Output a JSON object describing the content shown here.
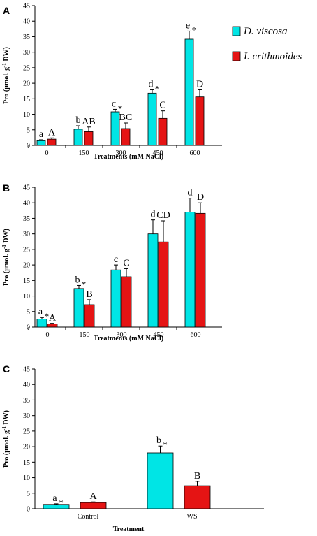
{
  "colors": {
    "series1": "#00e5e5",
    "series2": "#e51414",
    "stroke": "#000000"
  },
  "legend": [
    {
      "label": "D. viscosa",
      "color": "#00e5e5"
    },
    {
      "label": "I. crithmoides",
      "color": "#e51414"
    }
  ],
  "chart_data": [
    {
      "panel": "A",
      "type": "bar",
      "xlabel": "Treatments  (mM  NaCl)",
      "ylabel_parts": [
        "Pro (μmol. g",
        "-1",
        " DW)"
      ],
      "ylim": [
        0,
        45
      ],
      "yticks": [
        0,
        5,
        10,
        15,
        20,
        25,
        30,
        35,
        40,
        45
      ],
      "categories": [
        "0",
        "150",
        "300",
        "450",
        "600"
      ],
      "legend_position": "top-right",
      "series": [
        {
          "values": [
            1.5,
            5.2,
            10.8,
            16.8,
            34.2
          ],
          "errors": [
            0.3,
            1.1,
            0.8,
            1.1,
            2.6
          ],
          "letters": [
            "a",
            "b",
            "c",
            "d",
            "e"
          ],
          "stars": [
            false,
            false,
            true,
            true,
            true
          ]
        },
        {
          "values": [
            2.0,
            4.4,
            5.4,
            8.7,
            15.6
          ],
          "errors": [
            0.4,
            1.5,
            1.8,
            2.4,
            2.3
          ],
          "letters": [
            "A",
            "AB",
            "BC",
            "C",
            "D"
          ],
          "stars": [
            false,
            false,
            false,
            false,
            false
          ]
        }
      ]
    },
    {
      "panel": "B",
      "type": "bar",
      "xlabel": "Treatments  (mM  NaCl)",
      "ylabel_parts": [
        "Pro (μmol. g",
        "-1",
        " DW)"
      ],
      "ylim": [
        0,
        45
      ],
      "yticks": [
        0,
        5,
        10,
        15,
        20,
        25,
        30,
        35,
        40,
        45
      ],
      "categories": [
        "0",
        "150",
        "300",
        "450",
        "600"
      ],
      "series": [
        {
          "values": [
            2.6,
            12.4,
            18.4,
            30.0,
            37.0
          ],
          "errors": [
            0.5,
            1.0,
            1.6,
            4.5,
            4.5
          ],
          "letters": [
            "a",
            "b",
            "c",
            "d",
            "d"
          ],
          "stars": [
            true,
            true,
            false,
            false,
            false
          ]
        },
        {
          "values": [
            1.0,
            7.2,
            16.2,
            27.4,
            36.6
          ],
          "errors": [
            0.2,
            1.6,
            2.6,
            6.8,
            3.4
          ],
          "letters": [
            "A",
            "B",
            "C",
            "CD",
            "D"
          ],
          "stars": [
            false,
            false,
            false,
            false,
            false
          ]
        }
      ]
    },
    {
      "panel": "C",
      "type": "bar",
      "xlabel": "Treatment",
      "ylabel_parts": [
        "Pro (μmol. g",
        "-1",
        " DW)"
      ],
      "ylim": [
        0,
        45
      ],
      "yticks": [
        0,
        5,
        10,
        15,
        20,
        25,
        30,
        35,
        40,
        45
      ],
      "categories": [
        "Control",
        "WS"
      ],
      "series": [
        {
          "values": [
            1.4,
            18.0
          ],
          "errors": [
            0.2,
            2.2
          ],
          "letters": [
            "a",
            "b"
          ],
          "stars": [
            true,
            true
          ]
        },
        {
          "values": [
            2.0,
            7.4
          ],
          "errors": [
            0.2,
            1.4
          ],
          "letters": [
            "A",
            "B"
          ],
          "stars": [
            false,
            false
          ]
        }
      ]
    }
  ]
}
